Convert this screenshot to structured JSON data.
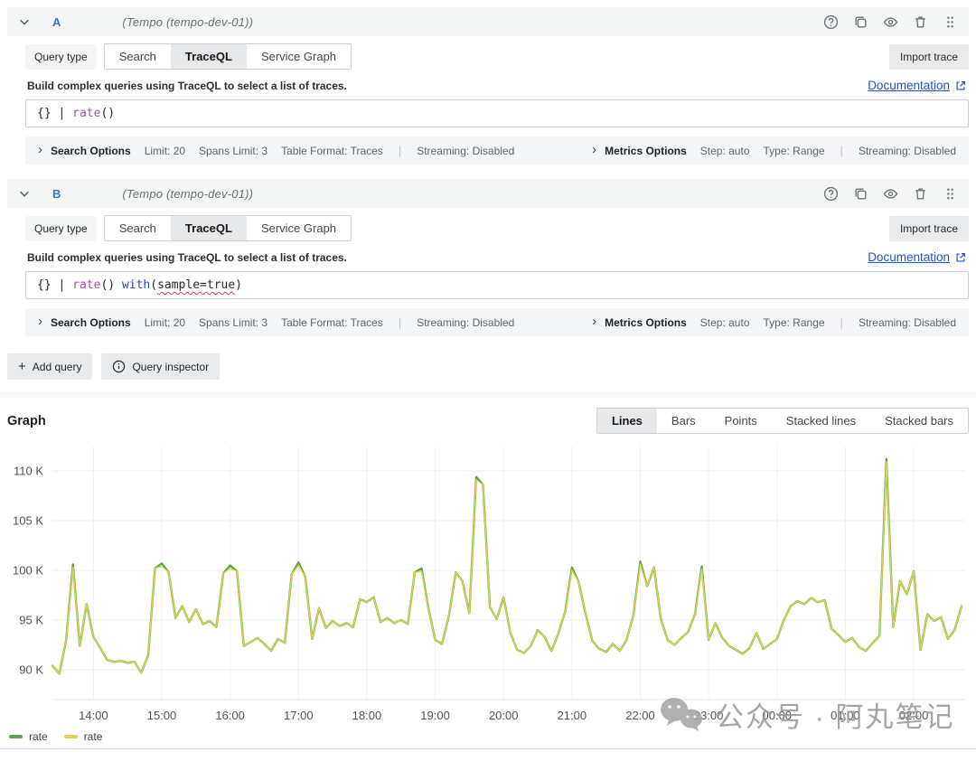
{
  "queries": [
    {
      "ref_id": "A",
      "datasource": "(Tempo (tempo-dev-01))",
      "query_type_label": "Query type",
      "query_types": [
        "Search",
        "TraceQL",
        "Service Graph"
      ],
      "active_query_type": "TraceQL",
      "import_button": "Import trace",
      "help_text": "Build complex queries using TraceQL to select a list of traces.",
      "doc_link": "Documentation",
      "query_tokens": [
        {
          "t": "{} | ",
          "c": "pl"
        },
        {
          "t": "rate",
          "c": "fn"
        },
        {
          "t": "()",
          "c": "pl"
        }
      ],
      "search_options": {
        "label": "Search Options",
        "items": [
          "Limit: 20",
          "Spans Limit: 3",
          "Table Format: Traces"
        ],
        "streaming": "Streaming: Disabled"
      },
      "metrics_options": {
        "label": "Metrics Options",
        "items": [
          "Step: auto",
          "Type: Range"
        ],
        "streaming": "Streaming: Disabled"
      }
    },
    {
      "ref_id": "B",
      "datasource": "(Tempo (tempo-dev-01))",
      "query_type_label": "Query type",
      "query_types": [
        "Search",
        "TraceQL",
        "Service Graph"
      ],
      "active_query_type": "TraceQL",
      "import_button": "Import trace",
      "help_text": "Build complex queries using TraceQL to select a list of traces.",
      "doc_link": "Documentation",
      "query_tokens": [
        {
          "t": "{} | ",
          "c": "pl"
        },
        {
          "t": "rate",
          "c": "fn"
        },
        {
          "t": "() ",
          "c": "pl"
        },
        {
          "t": "with",
          "c": "kw"
        },
        {
          "t": "(",
          "c": "pl"
        },
        {
          "t": "sample=true",
          "c": "err"
        },
        {
          "t": ")",
          "c": "pl"
        }
      ],
      "search_options": {
        "label": "Search Options",
        "items": [
          "Limit: 20",
          "Spans Limit: 3",
          "Table Format: Traces"
        ],
        "streaming": "Streaming: Disabled"
      },
      "metrics_options": {
        "label": "Metrics Options",
        "items": [
          "Step: auto",
          "Type: Range"
        ],
        "streaming": "Streaming: Disabled"
      }
    }
  ],
  "toolbar": {
    "add_query": "Add query",
    "query_inspector": "Query inspector"
  },
  "graph": {
    "title": "Graph",
    "modes": [
      "Lines",
      "Bars",
      "Points",
      "Stacked lines",
      "Stacked bars"
    ],
    "active_mode": "Lines"
  },
  "watermark": "公众号 · 阿丸笔记",
  "chart_data": {
    "type": "line",
    "x_start": "13:24",
    "x_step_minutes": 6,
    "x_tick_labels": [
      "14:00",
      "15:00",
      "16:00",
      "17:00",
      "18:00",
      "19:00",
      "20:00",
      "21:00",
      "22:00",
      "23:00",
      "00:00",
      "01:00",
      "02:00"
    ],
    "y_tick_labels": [
      "110 K",
      "105 K",
      "100 K",
      "95 K",
      "90 K"
    ],
    "y_tick_values": [
      110,
      105,
      100,
      95,
      90
    ],
    "ylim": [
      87,
      113.3
    ],
    "unit": "K (thousands)",
    "grid": true,
    "legend_position": "bottom-left",
    "series": [
      {
        "name": "rate",
        "color": "#56A64B",
        "values": [
          90.4,
          89.6,
          92.9,
          100.6,
          92.4,
          96.6,
          93.3,
          92.2,
          91.0,
          90.8,
          90.9,
          90.7,
          90.8,
          89.7,
          91.4,
          100.2,
          100.7,
          99.8,
          95.2,
          96.4,
          94.8,
          96.1,
          94.6,
          94.9,
          94.3,
          99.7,
          100.5,
          99.9,
          92.4,
          92.8,
          93.2,
          92.6,
          91.9,
          93.1,
          92.7,
          99.6,
          100.8,
          99.3,
          93.1,
          96.2,
          94.2,
          94.9,
          94.4,
          94.7,
          94.3,
          97.1,
          96.8,
          97.3,
          94.8,
          95.2,
          94.7,
          95.0,
          94.6,
          99.8,
          100.2,
          96.2,
          93.0,
          92.6,
          95.4,
          99.8,
          98.9,
          95.7,
          109.4,
          108.6,
          96.3,
          95.1,
          97.3,
          93.7,
          92.0,
          91.7,
          92.4,
          94.0,
          93.3,
          91.9,
          93.6,
          95.8,
          100.3,
          98.8,
          95.6,
          92.9,
          92.1,
          91.8,
          92.6,
          91.9,
          93.0,
          95.5,
          100.9,
          98.4,
          100.3,
          95.1,
          93.0,
          92.5,
          93.2,
          93.8,
          95.6,
          100.4,
          93.0,
          94.7,
          93.2,
          92.4,
          92.0,
          91.6,
          92.2,
          93.7,
          92.1,
          92.6,
          93.1,
          95.0,
          96.4,
          96.9,
          96.6,
          97.2,
          96.8,
          97.0,
          94.1,
          93.5,
          92.8,
          93.2,
          92.3,
          91.9,
          92.7,
          93.4,
          111.2,
          94.3,
          98.9,
          97.6,
          99.9,
          92.0,
          95.6,
          94.9,
          95.3,
          93.1,
          94.0,
          96.4
        ]
      },
      {
        "name": "rate",
        "color": "#E2D24B",
        "values": [
          90.4,
          89.6,
          92.9,
          100.3,
          92.4,
          96.6,
          93.3,
          92.2,
          91.0,
          90.8,
          90.9,
          90.7,
          90.8,
          89.7,
          91.4,
          100.2,
          100.4,
          99.8,
          95.2,
          96.4,
          94.8,
          96.1,
          94.6,
          94.9,
          94.3,
          99.7,
          100.2,
          99.9,
          92.4,
          92.8,
          93.2,
          92.6,
          91.9,
          93.1,
          92.7,
          99.6,
          100.5,
          99.3,
          93.1,
          96.2,
          94.2,
          94.9,
          94.4,
          94.7,
          94.3,
          97.1,
          96.8,
          97.3,
          94.8,
          95.2,
          94.7,
          95.0,
          94.6,
          99.8,
          99.9,
          96.2,
          93.0,
          92.6,
          95.4,
          99.8,
          98.9,
          95.7,
          109.1,
          108.6,
          96.3,
          95.1,
          97.3,
          93.7,
          92.0,
          91.7,
          92.4,
          94.0,
          93.3,
          91.9,
          93.6,
          95.8,
          100.0,
          98.8,
          95.6,
          92.9,
          92.1,
          91.8,
          92.6,
          91.9,
          93.0,
          95.5,
          100.6,
          98.4,
          100.3,
          95.1,
          93.0,
          92.5,
          93.2,
          93.8,
          95.6,
          100.1,
          93.0,
          94.7,
          93.2,
          92.4,
          92.0,
          91.6,
          92.2,
          93.7,
          92.1,
          92.6,
          93.1,
          95.0,
          96.4,
          96.9,
          96.6,
          97.2,
          96.8,
          97.0,
          94.1,
          93.5,
          92.8,
          93.2,
          92.3,
          91.9,
          92.7,
          93.4,
          110.9,
          94.3,
          98.9,
          97.6,
          99.9,
          92.0,
          95.6,
          94.9,
          95.3,
          93.1,
          94.0,
          96.4
        ]
      }
    ],
    "legend": [
      {
        "label": "rate",
        "color": "#56A64B"
      },
      {
        "label": "rate",
        "color": "#E2D24B"
      }
    ]
  }
}
